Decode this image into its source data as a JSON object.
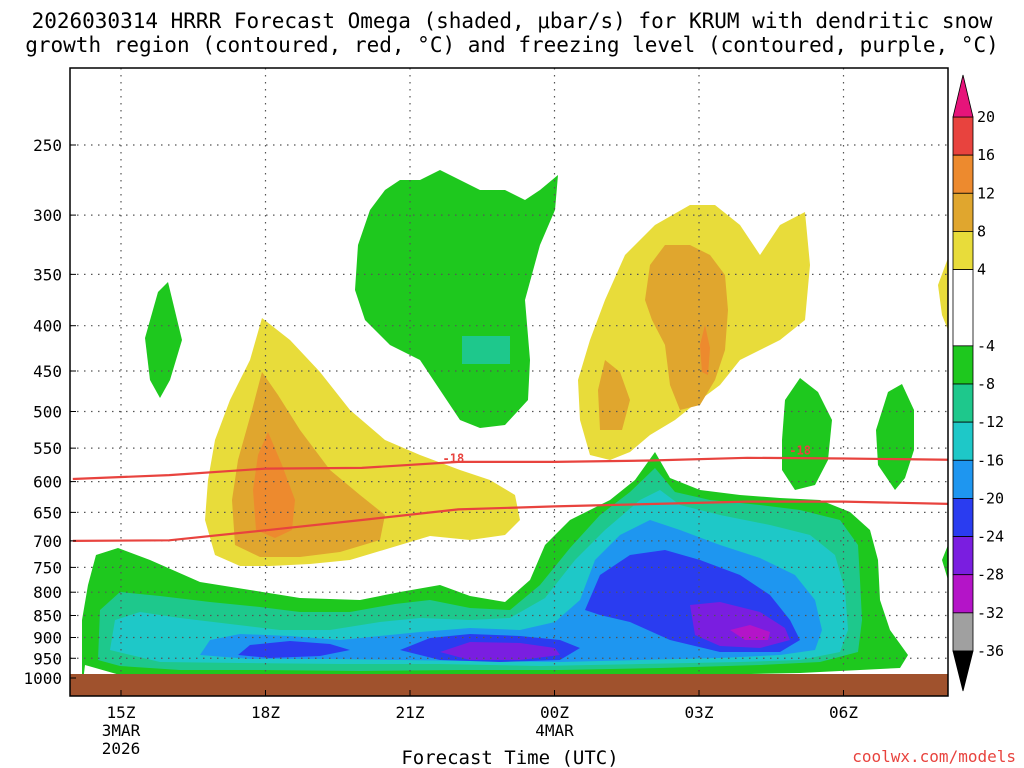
{
  "title_line1": "2026030314 HRRR Forecast Omega (shaded, μbar/s) for KRUM with dendritic snow",
  "title_line2": "growth region (contoured, red, °C) and freezing level (contoured, purple, °C)",
  "credit": "coolwx.com/models",
  "chart_data": {
    "type": "heatmap",
    "xlabel": "Forecast Time (UTC)",
    "ylabel": "",
    "y_scale": "pressure (log-like, inverted)",
    "ylim": [
      1000,
      200
    ],
    "y_ticks": [
      250,
      300,
      350,
      400,
      450,
      500,
      550,
      600,
      650,
      700,
      750,
      800,
      850,
      900,
      950,
      1000
    ],
    "x_ticks": [
      {
        "hour": 0,
        "label": "15Z",
        "sub1": "3MAR",
        "sub2": "2026"
      },
      {
        "hour": 3,
        "label": "18Z",
        "sub1": "",
        "sub2": ""
      },
      {
        "hour": 6,
        "label": "21Z",
        "sub1": "",
        "sub2": ""
      },
      {
        "hour": 9,
        "label": "00Z",
        "sub1": "4MAR",
        "sub2": ""
      },
      {
        "hour": 12,
        "label": "03Z",
        "sub1": "",
        "sub2": ""
      },
      {
        "hour": 15,
        "label": "06Z",
        "sub1": "",
        "sub2": ""
      }
    ],
    "xlim_hours": [
      -1,
      17.3
    ],
    "grid": true,
    "colorbar": {
      "labels": [
        "20",
        "16",
        "12",
        "8",
        "4",
        "-4",
        "-8",
        "-12",
        "-16",
        "-20",
        "-24",
        "-28",
        "-32",
        "-36"
      ],
      "bands": [
        {
          "from": 16,
          "to": 20,
          "color": "#e8433e"
        },
        {
          "from": 12,
          "to": 16,
          "color": "#ed8a2e"
        },
        {
          "from": 8,
          "to": 12,
          "color": "#e0a62e"
        },
        {
          "from": 4,
          "to": 8,
          "color": "#e8dc3a"
        },
        {
          "from": -4,
          "to": 4,
          "color": "#ffffff"
        },
        {
          "from": -8,
          "to": -4,
          "color": "#1ec81e"
        },
        {
          "from": -12,
          "to": -8,
          "color": "#1ec88c"
        },
        {
          "from": -16,
          "to": -12,
          "color": "#1ec8c8"
        },
        {
          "from": -20,
          "to": -16,
          "color": "#1e96f0"
        },
        {
          "from": -24,
          "to": -20,
          "color": "#2a3cf0"
        },
        {
          "from": -28,
          "to": -24,
          "color": "#7a1ee0"
        },
        {
          "from": -32,
          "to": -28,
          "color": "#b414c8"
        },
        {
          "from": -36,
          "to": -32,
          "color": "#a0a0a0"
        }
      ],
      "top_arrow_color": "#e6147a",
      "bottom_arrow_color": "#000000"
    },
    "contour_series": [
      {
        "label": "-18",
        "color": "#e8433e",
        "points": [
          [
            -1,
            596
          ],
          [
            1,
            590
          ],
          [
            3,
            580
          ],
          [
            5,
            579
          ],
          [
            7,
            570
          ],
          [
            9,
            570
          ],
          [
            11,
            568
          ],
          [
            13,
            564
          ],
          [
            15,
            565
          ],
          [
            17.3,
            567
          ]
        ]
      },
      {
        "name": "",
        "color": "#e8433e",
        "points": [
          [
            -1,
            700
          ],
          [
            1,
            699
          ],
          [
            3,
            681
          ],
          [
            5,
            663
          ],
          [
            7,
            645
          ],
          [
            9,
            640
          ],
          [
            11,
            636
          ],
          [
            13,
            632
          ],
          [
            15,
            632
          ],
          [
            17.3,
            636
          ]
        ]
      }
    ],
    "contour_labels": [
      {
        "text": "-18",
        "hour": 6.9,
        "p": 568
      },
      {
        "text": "-18",
        "hour": 14.1,
        "p": 556
      }
    ],
    "surface_color": "#a0522d",
    "surface_p": 1000
  }
}
